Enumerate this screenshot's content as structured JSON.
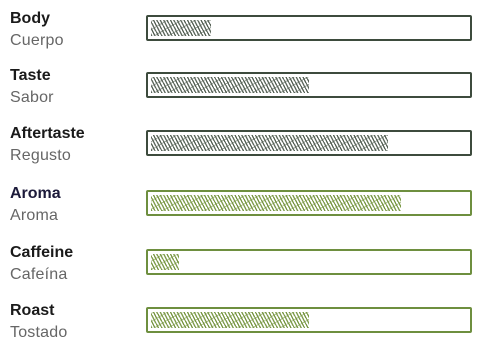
{
  "colors": {
    "bar_outline": "#3d4b3d",
    "bar_fill": "#5a665a",
    "accent_outline": "#6e8f3f",
    "accent_fill": "#7c9a48",
    "accent_label": "#1c1a3a"
  },
  "attributes": [
    {
      "label_en": "Body",
      "label_es": "Cuerpo",
      "level": 0.19,
      "color": "gray"
    },
    {
      "label_en": "Taste",
      "label_es": "Sabor",
      "level": 0.5,
      "color": "gray"
    },
    {
      "label_en": "Aftertaste",
      "label_es": "Regusto",
      "level": 0.75,
      "color": "gray"
    },
    {
      "label_en": "Aroma",
      "label_es": "Aroma",
      "level": 0.79,
      "color": "green"
    },
    {
      "label_en": "Caffeine",
      "label_es": "Cafeína",
      "level": 0.09,
      "color": "green"
    },
    {
      "label_en": "Roast",
      "label_es": "Tostado",
      "level": 0.5,
      "color": "green"
    }
  ]
}
